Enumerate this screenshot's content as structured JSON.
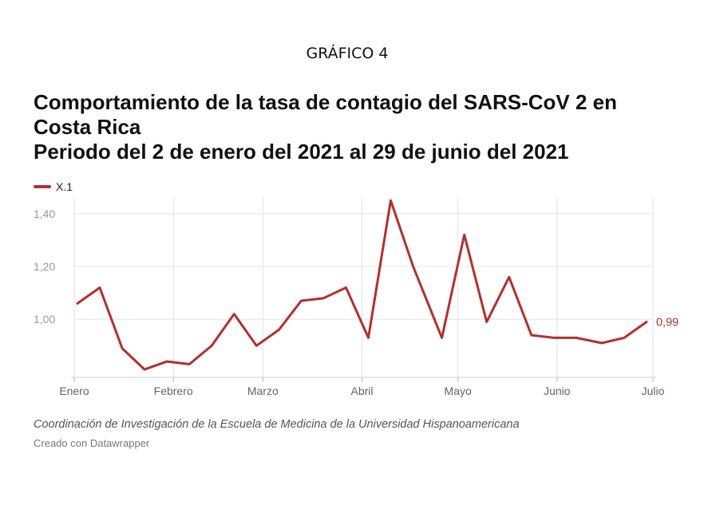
{
  "header": {
    "kicker": "GRÁFICO 4",
    "title_line1": "Comportamiento de la tasa de contagio del SARS-CoV 2 en",
    "title_line2": "Costa Rica",
    "title_line3": "Periodo del 2 de enero del 2021 al 29 de junio del 2021"
  },
  "footer": {
    "notes": "Coordinación de Investigación de la Escuela de Medicina de la Universidad Hispanoamericana",
    "credit": "Creado con Datawrapper"
  },
  "chart_data": {
    "type": "line",
    "series": [
      {
        "name": "X.1",
        "color": "#b3302c",
        "points": [
          {
            "x": "2021-01-02",
            "y": 1.06
          },
          {
            "x": "2021-01-09",
            "y": 1.12
          },
          {
            "x": "2021-01-16",
            "y": 0.89
          },
          {
            "x": "2021-01-23",
            "y": 0.81
          },
          {
            "x": "2021-01-30",
            "y": 0.84
          },
          {
            "x": "2021-02-06",
            "y": 0.83
          },
          {
            "x": "2021-02-13",
            "y": 0.9
          },
          {
            "x": "2021-02-20",
            "y": 1.02
          },
          {
            "x": "2021-02-27",
            "y": 0.9
          },
          {
            "x": "2021-03-06",
            "y": 0.96
          },
          {
            "x": "2021-03-13",
            "y": 1.07
          },
          {
            "x": "2021-03-20",
            "y": 1.08
          },
          {
            "x": "2021-03-27",
            "y": 1.12
          },
          {
            "x": "2021-04-03",
            "y": 0.93
          },
          {
            "x": "2021-04-10",
            "y": 1.45
          },
          {
            "x": "2021-04-17",
            "y": 1.2
          },
          {
            "x": "2021-04-26",
            "y": 0.93
          },
          {
            "x": "2021-05-03",
            "y": 1.32
          },
          {
            "x": "2021-05-10",
            "y": 0.99
          },
          {
            "x": "2021-05-17",
            "y": 1.16
          },
          {
            "x": "2021-05-24",
            "y": 0.94
          },
          {
            "x": "2021-05-31",
            "y": 0.93
          },
          {
            "x": "2021-06-07",
            "y": 0.93
          },
          {
            "x": "2021-06-15",
            "y": 0.91
          },
          {
            "x": "2021-06-22",
            "y": 0.93
          },
          {
            "x": "2021-06-29",
            "y": 0.99
          }
        ]
      }
    ],
    "end_label": "0,99",
    "x_ticks": [
      {
        "date": "2021-01-01",
        "label": "Enero"
      },
      {
        "date": "2021-02-01",
        "label": "Febrero"
      },
      {
        "date": "2021-03-01",
        "label": "Marzo"
      },
      {
        "date": "2021-04-01",
        "label": "Abril"
      },
      {
        "date": "2021-05-01",
        "label": "Mayo"
      },
      {
        "date": "2021-06-01",
        "label": "Junio"
      },
      {
        "date": "2021-07-01",
        "label": "Julio"
      }
    ],
    "y_ticks": [
      {
        "value": 1.0,
        "label": "1,00"
      },
      {
        "value": 1.2,
        "label": "1,20"
      },
      {
        "value": 1.4,
        "label": "1,40"
      }
    ],
    "xlim": [
      "2021-01-01",
      "2021-07-01"
    ],
    "ylim": [
      0.78,
      1.46
    ],
    "grid": true,
    "legend_position": "top-left"
  }
}
